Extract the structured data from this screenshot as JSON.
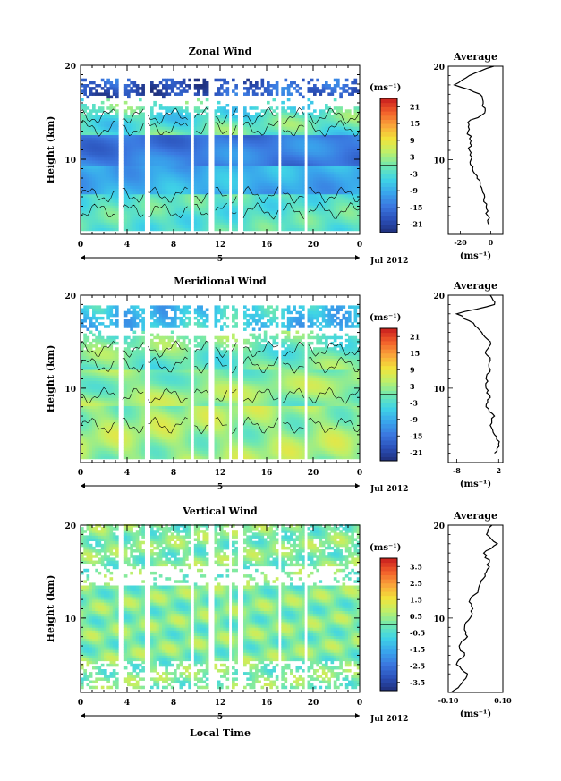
{
  "figure": {
    "x_axis_label": "Local Time",
    "date_label": "Jul 2012",
    "day_label": "5",
    "unit_label": "(ms⁻¹)"
  },
  "chart_data": [
    {
      "type": "heatmap",
      "title": "Zonal Wind",
      "ylabel": "Height (km)",
      "xlabel": "",
      "xlim": [
        0,
        24
      ],
      "ylim": [
        2,
        20
      ],
      "x_ticks": [
        "0",
        "4",
        "8",
        "12",
        "16",
        "20",
        "0"
      ],
      "y_ticks": [
        "10",
        "20"
      ],
      "colorbar": {
        "unit": "(ms⁻¹)",
        "ticks": [
          "21",
          "15",
          "9",
          "3",
          "-3",
          "-9",
          "-15",
          "-21"
        ],
        "min": -24,
        "max": 24
      },
      "profile": {
        "title": "Average",
        "xlabel": "(ms⁻¹)",
        "x_ticks": [
          "-20",
          "0"
        ],
        "xlim": [
          -28,
          8
        ],
        "heights": [
          3,
          4,
          5,
          6,
          7,
          8,
          9,
          10,
          11,
          12,
          13,
          14,
          15,
          16,
          17,
          18,
          19,
          20
        ],
        "values": [
          -1,
          -2,
          -3,
          -4,
          -6,
          -9,
          -12,
          -13,
          -14,
          -13,
          -15,
          -15,
          -4,
          -5,
          -7,
          -24,
          -14,
          2
        ]
      }
    },
    {
      "type": "heatmap",
      "title": "Meridional Wind",
      "ylabel": "Height (km)",
      "xlabel": "",
      "xlim": [
        0,
        24
      ],
      "ylim": [
        2,
        20
      ],
      "x_ticks": [
        "0",
        "4",
        "8",
        "12",
        "16",
        "20",
        "0"
      ],
      "y_ticks": [
        "10",
        "20"
      ],
      "colorbar": {
        "unit": "(ms⁻¹)",
        "ticks": [
          "21",
          "15",
          "9",
          "3",
          "-3",
          "-9",
          "-15",
          "-21"
        ],
        "min": -24,
        "max": 24
      },
      "profile": {
        "title": "Average",
        "xlabel": "(ms⁻¹)",
        "x_ticks": [
          "-8",
          "2"
        ],
        "xlim": [
          -10,
          3
        ],
        "heights": [
          3,
          4,
          5,
          6,
          7,
          8,
          9,
          10,
          11,
          12,
          13,
          14,
          15,
          16,
          17,
          18,
          19,
          20
        ],
        "values": [
          1,
          2,
          1,
          0,
          1,
          -1,
          0,
          -1,
          -1,
          0,
          0,
          -1,
          0,
          -2,
          -4,
          -8,
          1,
          0
        ]
      }
    },
    {
      "type": "heatmap",
      "title": "Vertical Wind",
      "ylabel": "Height (km)",
      "xlabel": "Local Time",
      "xlim": [
        0,
        24
      ],
      "ylim": [
        2,
        20
      ],
      "x_ticks": [
        "0",
        "4",
        "8",
        "12",
        "16",
        "20",
        "0"
      ],
      "y_ticks": [
        "10",
        "20"
      ],
      "colorbar": {
        "unit": "(ms⁻¹)",
        "ticks": [
          "3.5",
          "2.5",
          "1.5",
          "0.5",
          "-0.5",
          "-1.5",
          "-2.5",
          "-3.5"
        ],
        "min": -4,
        "max": 4
      },
      "profile": {
        "title": "Average",
        "xlabel": "(ms⁻¹)",
        "x_ticks": [
          "-0.10",
          "0.10"
        ],
        "xlim": [
          -0.1,
          0.1
        ],
        "heights": [
          2,
          3,
          4,
          5,
          6,
          7,
          8,
          9,
          10,
          11,
          12,
          13,
          14,
          15,
          16,
          17,
          18,
          19,
          20
        ],
        "values": [
          -0.09,
          -0.05,
          -0.03,
          -0.07,
          -0.04,
          -0.06,
          -0.03,
          -0.04,
          -0.02,
          -0.01,
          -0.02,
          0.01,
          0.02,
          0.04,
          0.05,
          0.03,
          0.08,
          0.04,
          0.06
        ]
      }
    }
  ]
}
